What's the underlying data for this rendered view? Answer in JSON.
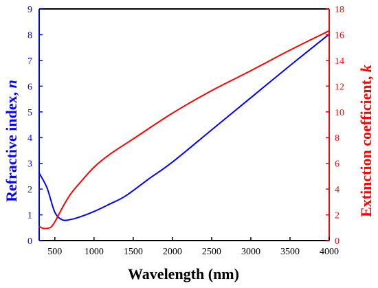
{
  "chart_data": {
    "type": "line",
    "title": "",
    "xlabel": "Wavelength (nm)",
    "ylabel_left": {
      "text": "Refractive index, ",
      "var": "n",
      "color": "#0000ff"
    },
    "ylabel_right": {
      "text": "Extinction coefficient, ",
      "var": "k",
      "color": "#ff0000"
    },
    "xlim": [
      300,
      4000
    ],
    "ylim_left": [
      0,
      9
    ],
    "ylim_right": [
      0,
      18
    ],
    "x_ticks": [
      500,
      1000,
      1500,
      2000,
      2500,
      3000,
      3500,
      4000
    ],
    "x_tick_labels": [
      "500",
      "1000",
      "1500",
      "2000",
      "2500",
      "3000",
      "3500",
      "4000"
    ],
    "y_ticks_left": [
      0,
      1,
      2,
      3,
      4,
      5,
      6,
      7,
      8,
      9
    ],
    "y_tick_labels_left": [
      "0",
      "1",
      "2",
      "3",
      "4",
      "5",
      "6",
      "7",
      "8",
      "9"
    ],
    "y_ticks_right": [
      0,
      2,
      4,
      6,
      8,
      10,
      12,
      14,
      16,
      18
    ],
    "y_tick_labels_right": [
      "0",
      "2",
      "4",
      "6",
      "8",
      "10",
      "12",
      "14",
      "16",
      "18"
    ],
    "grid": false,
    "legend": "none",
    "series": [
      {
        "axis": "left",
        "color": "#0000ff",
        "x": [
          300,
          400,
          500,
          600,
          700,
          800,
          1000,
          1200,
          1400,
          1700,
          2000,
          2500,
          3000,
          3500,
          4000
        ],
        "y": [
          2.62,
          2.05,
          1.1,
          0.8,
          0.82,
          0.9,
          1.13,
          1.42,
          1.73,
          2.4,
          3.05,
          4.3,
          5.55,
          6.8,
          8.02
        ]
      },
      {
        "axis": "right",
        "color": "#ff0000",
        "x": [
          300,
          350,
          400,
          450,
          500,
          600,
          700,
          800,
          1000,
          1200,
          1500,
          2000,
          2500,
          3000,
          3500,
          4000
        ],
        "y": [
          1.1,
          0.95,
          0.95,
          1.05,
          1.45,
          2.6,
          3.6,
          4.35,
          5.7,
          6.7,
          7.9,
          9.9,
          11.65,
          13.2,
          14.8,
          16.3
        ]
      }
    ]
  }
}
